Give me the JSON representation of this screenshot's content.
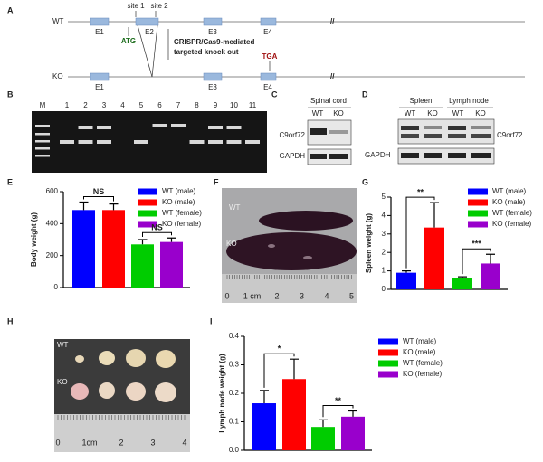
{
  "panel_labels": [
    "A",
    "B",
    "C",
    "D",
    "E",
    "F",
    "G",
    "H",
    "I"
  ],
  "panel_a": {
    "wt": "WT",
    "ko": "KO",
    "exons_wt": [
      "E1",
      "E2",
      "E3",
      "E4"
    ],
    "exons_ko": [
      "E1",
      "E3",
      "E4"
    ],
    "site1": "site 1",
    "site2": "site 2",
    "start_codon": "ATG",
    "stop_codon": "TGA",
    "method": [
      "CRISPR/Cas9-mediated",
      "targeted knock out"
    ],
    "break": "//"
  },
  "panel_b": {
    "lanes": [
      "M",
      "1",
      "2",
      "3",
      "4",
      "5",
      "6",
      "7",
      "8",
      "9",
      "10",
      "11"
    ]
  },
  "panel_c": {
    "tissue": "Spinal cord",
    "lanes": [
      "WT",
      "KO"
    ],
    "proteins": [
      "C9orf72",
      "GAPDH"
    ]
  },
  "panel_d": {
    "tissues": [
      "Spleen",
      "Lymph node"
    ],
    "lanes": [
      "WT",
      "KO",
      "WT",
      "KO"
    ],
    "proteins": [
      "C9orf72",
      "GAPDH"
    ]
  },
  "panel_f": {
    "labels": [
      "WT",
      "KO"
    ],
    "ruler": [
      "0",
      "1 cm",
      "2",
      "3",
      "4",
      "5"
    ]
  },
  "panel_h": {
    "labels": [
      "WT",
      "KO"
    ],
    "ruler": [
      "0",
      "1cm",
      "2",
      "3",
      "4"
    ]
  },
  "chart_data": [
    {
      "type": "bar",
      "ylabel": "Body weight (g)",
      "ylim": [
        0,
        600
      ],
      "yticks": [
        0,
        200,
        400,
        600
      ],
      "series": [
        {
          "name": "WT (male)",
          "color": "#0000ff",
          "values": [
            485
          ],
          "errors": [
            50
          ]
        },
        {
          "name": "KO (male)",
          "color": "#ff0000",
          "values": [
            485
          ],
          "errors": [
            38
          ]
        },
        {
          "name": "WT (female)",
          "color": "#00cc00",
          "values": [
            270
          ],
          "errors": [
            30
          ]
        },
        {
          "name": "KO (female)",
          "color": "#9900cc",
          "values": [
            285
          ],
          "errors": [
            25
          ]
        }
      ],
      "annotations": [
        "NS",
        "NS"
      ]
    },
    {
      "type": "bar",
      "ylabel": "Spleen weight (g)",
      "ylim": [
        0,
        5
      ],
      "yticks": [
        0,
        1,
        2,
        3,
        4,
        5
      ],
      "series": [
        {
          "name": "WT (male)",
          "color": "#0000ff",
          "values": [
            0.9
          ],
          "errors": [
            0.1
          ]
        },
        {
          "name": "KO (male)",
          "color": "#ff0000",
          "values": [
            3.35
          ],
          "errors": [
            1.35
          ]
        },
        {
          "name": "WT (female)",
          "color": "#00cc00",
          "values": [
            0.6
          ],
          "errors": [
            0.08
          ]
        },
        {
          "name": "KO (female)",
          "color": "#9900cc",
          "values": [
            1.4
          ],
          "errors": [
            0.5
          ]
        }
      ],
      "annotations": [
        "**",
        "***"
      ]
    },
    {
      "type": "bar",
      "ylabel": "Lymph node weight (g)",
      "ylim": [
        0,
        0.4
      ],
      "yticks": [
        {
          "value": 0,
          "label": "0.0"
        },
        0.1,
        0.2,
        0.3,
        0.4
      ],
      "series": [
        {
          "name": "WT (male)",
          "color": "#0000ff",
          "values": [
            0.165
          ],
          "errors": [
            0.045
          ]
        },
        {
          "name": "KO (male)",
          "color": "#ff0000",
          "values": [
            0.25
          ],
          "errors": [
            0.07
          ]
        },
        {
          "name": "WT (female)",
          "color": "#00cc00",
          "values": [
            0.082
          ],
          "errors": [
            0.025
          ]
        },
        {
          "name": "KO (female)",
          "color": "#9900cc",
          "values": [
            0.118
          ],
          "errors": [
            0.02
          ]
        }
      ],
      "annotations": [
        "*",
        "**"
      ]
    }
  ]
}
